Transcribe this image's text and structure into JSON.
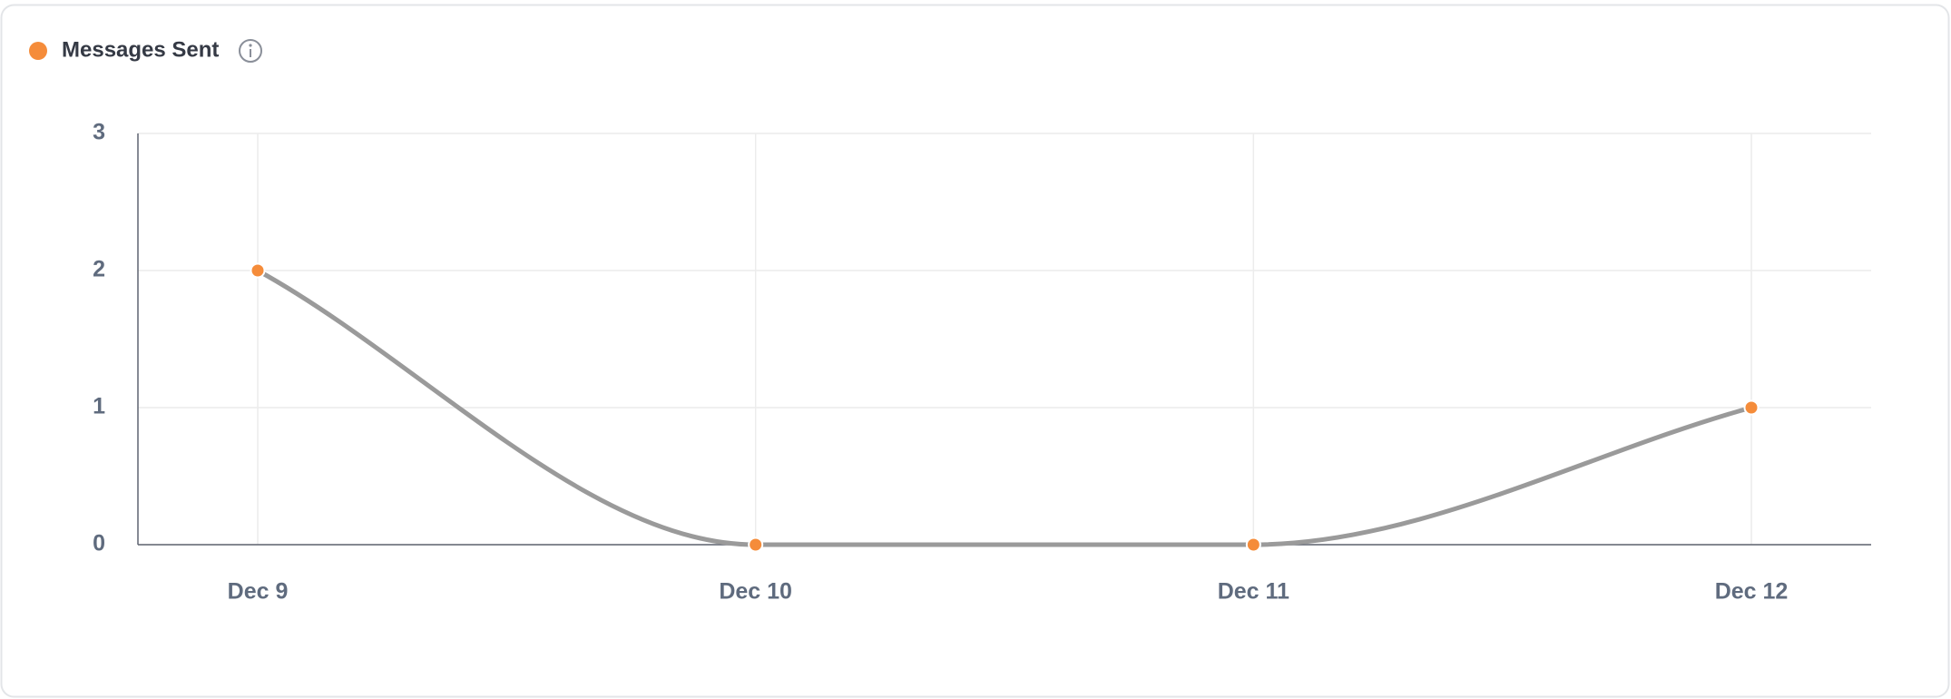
{
  "chart_data": {
    "type": "line",
    "categories": [
      "Dec 9",
      "Dec 10",
      "Dec 11",
      "Dec 12"
    ],
    "series": [
      {
        "name": "Messages Sent",
        "color": "#f58c3a",
        "line_color": "#9a9a9a",
        "values": [
          2,
          0,
          0,
          1
        ]
      }
    ],
    "ylim": [
      0,
      3
    ],
    "yticks": [
      0,
      1,
      2,
      3
    ],
    "grid": true
  }
}
